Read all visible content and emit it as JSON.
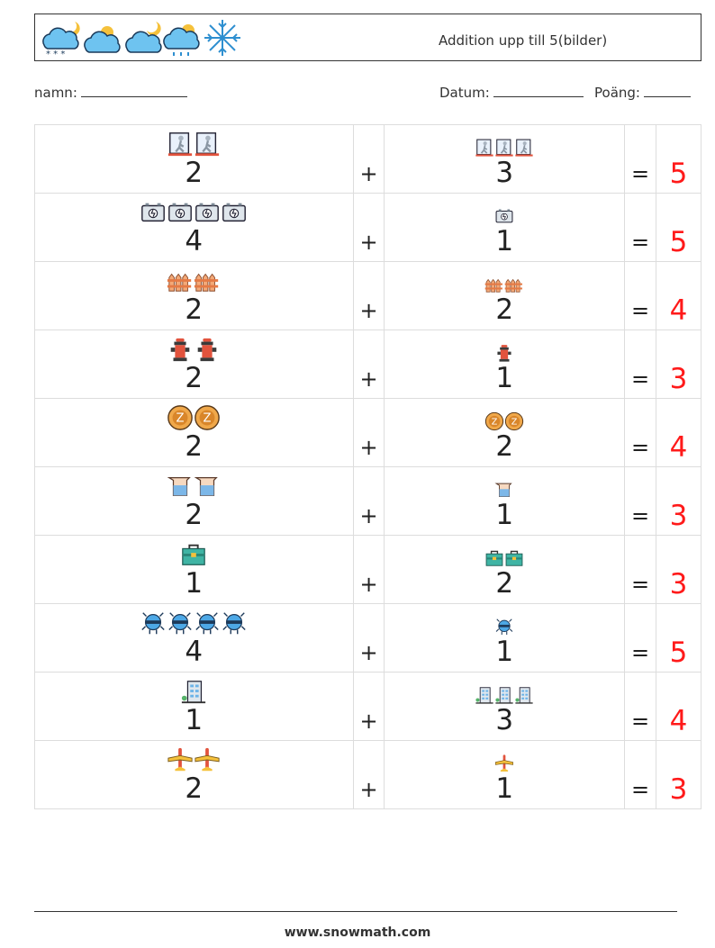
{
  "header": {
    "title": "Addition upp till 5(bilder)",
    "icons": [
      "cloud-moon-snow-icon",
      "cloud-sun-icon",
      "cloud-moon-icon",
      "cloud-sun-rain-icon",
      "snowflake-icon"
    ]
  },
  "info": {
    "name_label": "namn:",
    "date_label": "Datum:",
    "score_label": "Poäng:"
  },
  "plus": "+",
  "equals": "=",
  "rows": [
    {
      "a": "2",
      "b": "3",
      "answer": "5",
      "icon": "exit-door-icon"
    },
    {
      "a": "4",
      "b": "1",
      "answer": "5",
      "icon": "battery-icon"
    },
    {
      "a": "2",
      "b": "2",
      "answer": "4",
      "icon": "fence-icon"
    },
    {
      "a": "2",
      "b": "1",
      "answer": "3",
      "icon": "fire-hydrant-icon"
    },
    {
      "a": "2",
      "b": "2",
      "answer": "4",
      "icon": "coin-icon"
    },
    {
      "a": "2",
      "b": "1",
      "answer": "3",
      "icon": "beaker-icon"
    },
    {
      "a": "1",
      "b": "2",
      "answer": "3",
      "icon": "toolbox-icon"
    },
    {
      "a": "4",
      "b": "1",
      "answer": "5",
      "icon": "bug-robot-icon"
    },
    {
      "a": "1",
      "b": "3",
      "answer": "4",
      "icon": "building-icon"
    },
    {
      "a": "2",
      "b": "1",
      "answer": "3",
      "icon": "airplane-icon"
    }
  ],
  "footer": "www.snowmath.com"
}
